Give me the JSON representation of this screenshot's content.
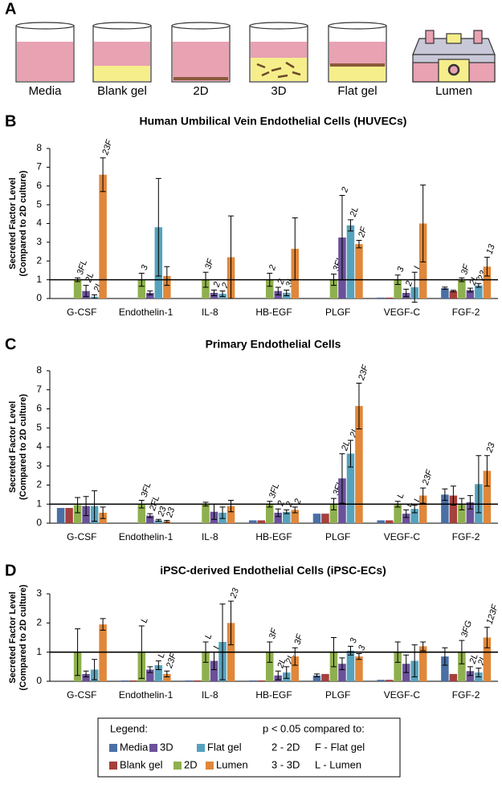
{
  "panel_labels": [
    "A",
    "B",
    "C",
    "D"
  ],
  "schematic": {
    "labels": [
      "Media",
      "Blank gel",
      "2D",
      "3D",
      "Flat gel",
      "Lumen"
    ]
  },
  "chart_data": [
    {
      "type": "bar",
      "title": "Human Umbilical Vein Endothelial Cells (HUVECs)",
      "ylabel": [
        "Secreted Factor Level",
        "(Compared to 2D culture)"
      ],
      "categories": [
        "G-CSF",
        "Endothelin-1",
        "IL-8",
        "HB-EGF",
        "PLGF",
        "VEGF-C",
        "FGF-2"
      ],
      "ylim": [
        0,
        8
      ],
      "yticks": [
        0,
        1,
        2,
        3,
        4,
        5,
        6,
        7,
        8
      ],
      "hline": 1,
      "series": [
        {
          "name": "Media",
          "color": "#4a6fa5",
          "values": [
            null,
            null,
            null,
            null,
            null,
            0.05,
            0.55
          ],
          "errors": [
            null,
            null,
            null,
            null,
            null,
            null,
            0.06
          ],
          "annotations": [
            null,
            null,
            null,
            null,
            null,
            null,
            null
          ]
        },
        {
          "name": "Blank gel",
          "color": "#a6403c",
          "values": [
            null,
            null,
            null,
            null,
            null,
            0.05,
            0.4
          ],
          "errors": [
            null,
            null,
            null,
            null,
            null,
            null,
            0.04
          ],
          "annotations": [
            null,
            null,
            null,
            null,
            null,
            null,
            null
          ]
        },
        {
          "name": "2D",
          "color": "#8fb04e",
          "values": [
            1,
            1,
            1,
            1,
            1,
            1,
            1
          ],
          "errors": [
            0.1,
            0.35,
            0.4,
            0.35,
            0.3,
            0.25,
            0.1
          ],
          "annotations": [
            "3FL",
            "3",
            "3F",
            "2",
            "3FL",
            "3",
            "3F"
          ]
        },
        {
          "name": "3D",
          "color": "#6b5199",
          "values": [
            0.4,
            0.3,
            0.3,
            0.4,
            3.25,
            0.3,
            0.45
          ],
          "errors": [
            0.3,
            0.1,
            0.15,
            0.2,
            2.25,
            0.2,
            0.1
          ],
          "annotations": [
            "2L",
            null,
            "2",
            "2",
            "2",
            "2",
            "2L"
          ]
        },
        {
          "name": "Flat gel",
          "color": "#55a2bd",
          "values": [
            0.1,
            3.8,
            0.25,
            0.3,
            3.9,
            0.6,
            0.7
          ],
          "errors": [
            0.1,
            2.6,
            0.15,
            0.15,
            0.3,
            0.8,
            0.1
          ],
          "annotations": [
            "2L",
            null,
            "2",
            "3L",
            "2L",
            "L",
            "23"
          ]
        },
        {
          "name": "Lumen",
          "color": "#e0873a",
          "values": [
            6.6,
            1.2,
            2.2,
            2.65,
            2.9,
            4,
            1.7
          ],
          "errors": [
            0.9,
            0.5,
            2.2,
            1.65,
            0.2,
            2.05,
            0.5
          ],
          "annotations": [
            "23F",
            null,
            null,
            null,
            "2F",
            null,
            "13"
          ]
        }
      ]
    },
    {
      "type": "bar",
      "title": "Primary Endothelial Cells",
      "ylabel": [
        "Secreted Factor Level",
        "(Compared to 2D culture)"
      ],
      "categories": [
        "G-CSF",
        "Endothelin-1",
        "IL-8",
        "HB-EGF",
        "PLGF",
        "VEGF-C",
        "FGF-2"
      ],
      "ylim": [
        0,
        8
      ],
      "yticks": [
        0,
        1,
        2,
        3,
        4,
        5,
        6,
        7,
        8
      ],
      "hline": 1,
      "series": [
        {
          "color": "#4a6fa5",
          "values": [
            0.8,
            null,
            null,
            0.15,
            0.5,
            0.15,
            1.5
          ],
          "errors": [
            null,
            null,
            null,
            null,
            null,
            null,
            0.3
          ],
          "annotations": [
            null,
            null,
            null,
            null,
            null,
            null,
            null
          ]
        },
        {
          "color": "#a6403c",
          "values": [
            0.8,
            null,
            null,
            0.15,
            0.5,
            0.15,
            1.45
          ],
          "errors": [
            null,
            null,
            null,
            null,
            null,
            null,
            0.5
          ],
          "annotations": [
            null,
            null,
            null,
            null,
            null,
            null,
            null
          ]
        },
        {
          "color": "#8fb04e",
          "values": [
            0.95,
            1,
            1,
            1,
            1,
            1,
            1
          ],
          "errors": [
            0.4,
            0.2,
            0.1,
            0.15,
            0.3,
            0.15,
            0.3
          ],
          "annotations": [
            null,
            "3FL",
            null,
            "3FL",
            "3FL",
            "L",
            null
          ]
        },
        {
          "color": "#6b5199",
          "values": [
            0.9,
            0.4,
            0.6,
            0.55,
            2.35,
            0.5,
            1.1
          ],
          "errors": [
            0.5,
            0.1,
            0.4,
            0.2,
            1.3,
            0.2,
            0.35
          ],
          "annotations": [
            null,
            "2FL",
            null,
            "2",
            "2L",
            "L",
            null
          ]
        },
        {
          "color": "#55a2bd",
          "values": [
            0.9,
            0.15,
            0.55,
            0.6,
            3.65,
            0.75,
            2.05
          ],
          "errors": [
            0.8,
            0.05,
            0.3,
            0.1,
            0.7,
            0.2,
            1.5
          ],
          "annotations": [
            null,
            "23",
            null,
            "2",
            "2L",
            "L",
            null
          ]
        },
        {
          "color": "#e0873a",
          "values": [
            0.55,
            0.1,
            0.9,
            0.7,
            6.15,
            1.45,
            2.75
          ],
          "errors": [
            0.3,
            0.05,
            0.3,
            0.15,
            1.2,
            0.4,
            0.8
          ],
          "annotations": [
            null,
            "23",
            null,
            "2",
            "23F",
            "23F",
            "23"
          ]
        }
      ]
    },
    {
      "type": "bar",
      "title": "iPSC-derived Endothelial Cells (iPSC-ECs)",
      "ylabel": [
        "Secreted Factor Level",
        "(Compared to 2D culture)"
      ],
      "categories": [
        "G-CSF",
        "Endothelin-1",
        "IL-8",
        "HB-EGF",
        "PLGF",
        "VEGF-C",
        "FGF-2"
      ],
      "ylim": [
        0,
        3
      ],
      "yticks": [
        0,
        1,
        2,
        3
      ],
      "hline": 1,
      "series": [
        {
          "color": "#4a6fa5",
          "values": [
            null,
            0.03,
            0.03,
            0.03,
            0.2,
            0.05,
            0.85
          ],
          "errors": [
            null,
            null,
            null,
            null,
            0.05,
            null,
            0.3
          ],
          "annotations": [
            null,
            null,
            null,
            null,
            null,
            null,
            null
          ]
        },
        {
          "color": "#a6403c",
          "values": [
            null,
            0.03,
            0.03,
            0.03,
            0.25,
            0.05,
            0.25
          ],
          "errors": [
            null,
            null,
            null,
            null,
            null,
            null,
            null
          ],
          "annotations": [
            null,
            null,
            null,
            null,
            null,
            null,
            null
          ]
        },
        {
          "color": "#8fb04e",
          "values": [
            1,
            1,
            1,
            1,
            1,
            1,
            1
          ],
          "errors": [
            0.8,
            0.9,
            0.35,
            0.35,
            0.5,
            0.35,
            0.4
          ],
          "annotations": [
            null,
            "L",
            "L",
            "3F",
            null,
            null,
            "3FG"
          ]
        },
        {
          "color": "#6b5199",
          "values": [
            0.25,
            0.4,
            0.7,
            0.2,
            0.6,
            0.6,
            0.35
          ],
          "errors": [
            0.1,
            0.1,
            0.3,
            0.15,
            0.2,
            0.3,
            0.15
          ],
          "annotations": [
            null,
            null,
            "L",
            "2L",
            null,
            null,
            "2L"
          ]
        },
        {
          "color": "#55a2bd",
          "values": [
            0.4,
            0.55,
            1.35,
            0.3,
            1.05,
            0.7,
            0.3
          ],
          "errors": [
            0.35,
            0.15,
            1.3,
            0.2,
            0.15,
            0.55,
            0.15
          ],
          "annotations": [
            null,
            "L",
            null,
            "2L",
            "3",
            null,
            "2L"
          ]
        },
        {
          "color": "#e0873a",
          "values": [
            1.95,
            0.25,
            2,
            0.85,
            0.85,
            1.2,
            1.5
          ],
          "errors": [
            0.2,
            0.1,
            0.75,
            0.3,
            0.1,
            0.15,
            0.35
          ],
          "annotations": [
            null,
            "23F",
            "23",
            "3F",
            "3",
            null,
            "123F"
          ]
        }
      ]
    }
  ],
  "legend": {
    "title": "Legend:",
    "note_title": "p < 0.05 compared to:",
    "notes": [
      "2 - 2D",
      "F - Flat gel",
      "3 - 3D",
      "L - Lumen"
    ]
  }
}
